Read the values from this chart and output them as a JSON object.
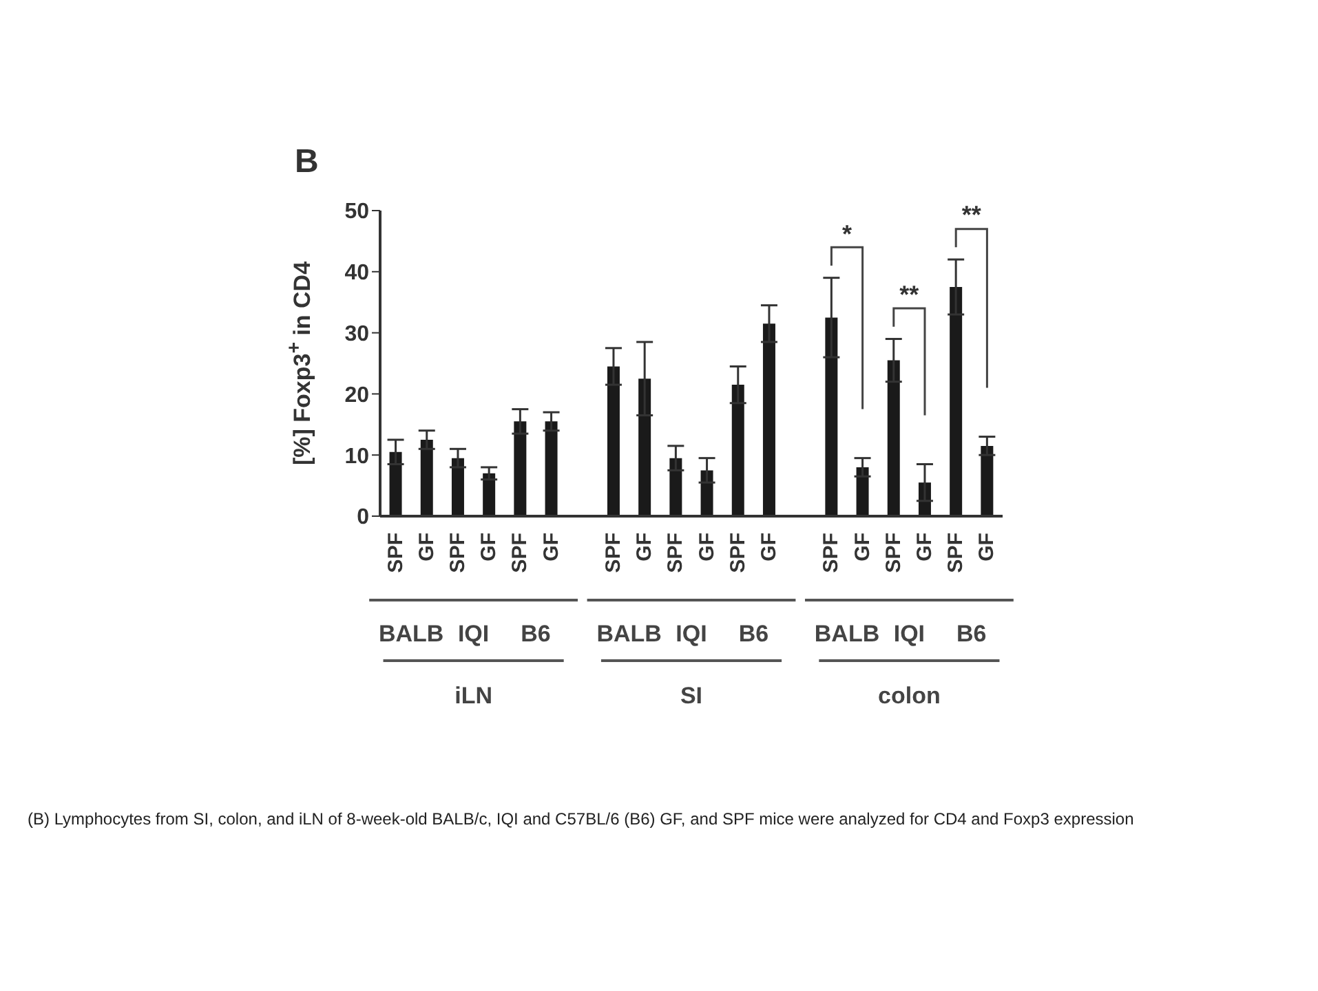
{
  "chart_data": {
    "type": "bar",
    "title": "B",
    "ylabel": "[%] Foxp3$^{+}$ in CD4",
    "categories": [
      "SPF",
      "GF",
      "SPF",
      "GF",
      "SPF",
      "GF",
      "SPF",
      "GF",
      "SPF",
      "GF",
      "SPF",
      "GF",
      "SPF",
      "GF",
      "SPF",
      "GF",
      "SPF",
      "GF"
    ],
    "values": [
      10.5,
      12.5,
      9.5,
      7,
      15.5,
      15.5,
      24.5,
      22.5,
      9.5,
      7.5,
      21.5,
      31.5,
      32.5,
      8,
      25.5,
      5.5,
      37.5,
      11.5
    ],
    "errors": [
      2,
      1.5,
      1.5,
      1,
      2,
      1.5,
      3,
      6,
      2,
      2,
      3,
      3,
      6.5,
      1.5,
      3.5,
      3,
      4.5,
      1.5
    ],
    "color": "#1a1a1a",
    "ylim": [
      0,
      50
    ],
    "yticks": [
      0,
      10,
      20,
      30,
      40,
      50
    ],
    "grid": false,
    "legend": false,
    "annotations": [
      "*",
      "**",
      "**",
      "BALB",
      "IQI",
      "B6",
      "BALB",
      "IQI",
      "B6",
      "BALB",
      "IQI",
      "B6",
      "iLN",
      "SI",
      "colon",
      "(B) Lymphocytes from SI, colon, and iLN of 8-week-old BALB/c, IQI and C57BL/6 (B6) GF, and SPF mice were analyzed for CD4 and Foxp3 expression"
    ]
  }
}
